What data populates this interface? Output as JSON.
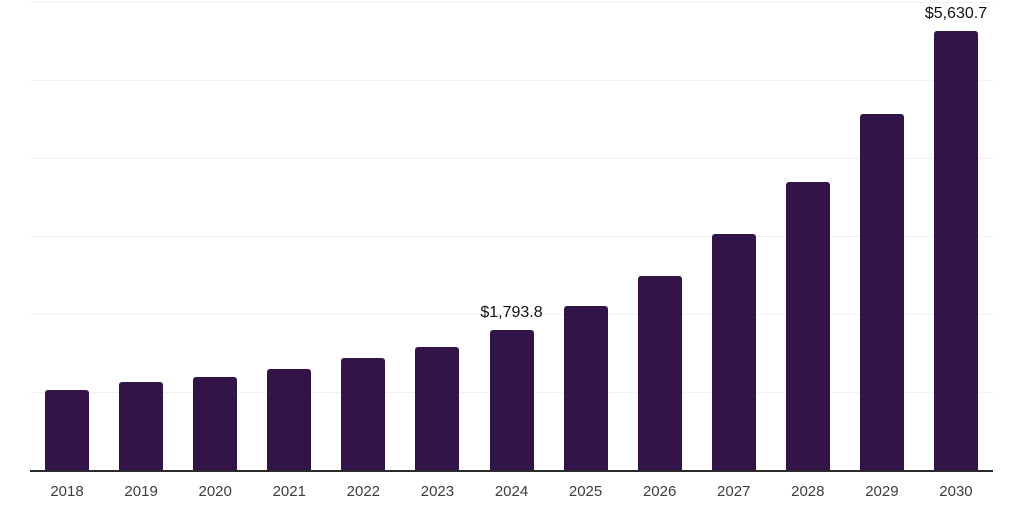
{
  "chart_data": {
    "type": "bar",
    "title": "",
    "xlabel": "",
    "ylabel": "",
    "categories": [
      "2018",
      "2019",
      "2020",
      "2021",
      "2022",
      "2023",
      "2024",
      "2025",
      "2026",
      "2027",
      "2028",
      "2029",
      "2030"
    ],
    "values": [
      1025,
      1130,
      1195,
      1300,
      1430,
      1570,
      1793.8,
      2100,
      2480,
      3030,
      3690,
      4560,
      5630.7
    ],
    "data_labels": [
      {
        "category": "2024",
        "text": "$1,793.8"
      },
      {
        "category": "2030",
        "text": "$5,630.7"
      }
    ],
    "ylim": [
      0,
      6022
    ],
    "gridline_values": [
      1000,
      2000,
      3000,
      4000,
      5000,
      6000
    ],
    "grid": "horizontal",
    "legend": "none",
    "colors": {
      "bar": "#331449",
      "axis_line": "#2b2b2b",
      "gridline": "#f0f0f0",
      "tick_label": "#3d3d3d",
      "data_label": "#111111",
      "background": "#ffffff"
    }
  }
}
